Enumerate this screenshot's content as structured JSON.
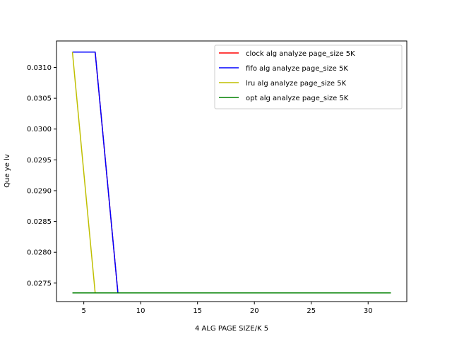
{
  "chart_data": {
    "type": "line",
    "title": "",
    "xlabel": "4 ALG PAGE SIZE/K 5",
    "ylabel": "Que ye lv",
    "xlim": [
      2.6,
      33.4
    ],
    "ylim": [
      0.0272,
      0.03143
    ],
    "xticks": [
      5,
      10,
      15,
      20,
      25,
      30
    ],
    "yticks": [
      0.0275,
      0.028,
      0.0285,
      0.029,
      0.0295,
      0.03,
      0.0305,
      0.031
    ],
    "ytick_labels": [
      "0.0275",
      "0.0280",
      "0.0285",
      "0.0290",
      "0.0295",
      "0.0300",
      "0.0305",
      "0.0310"
    ],
    "grid": false,
    "legend_position": "top-right",
    "series": [
      {
        "name": "clock alg analyze page_size 5K",
        "color": "#ff0000",
        "x": [
          4,
          6,
          8,
          10,
          12,
          14,
          16,
          18,
          20,
          22,
          24,
          26,
          28,
          30,
          32
        ],
        "y": [
          0.03125,
          0.03125,
          0.02734,
          0.02734,
          0.02734,
          0.02734,
          0.02734,
          0.02734,
          0.02734,
          0.02734,
          0.02734,
          0.02734,
          0.02734,
          0.02734,
          0.02734
        ]
      },
      {
        "name": "fifo alg analyze page_size 5K",
        "color": "#0000ff",
        "x": [
          4,
          6,
          8,
          10,
          12,
          14,
          16,
          18,
          20,
          22,
          24,
          26,
          28,
          30,
          32
        ],
        "y": [
          0.03125,
          0.03125,
          0.02734,
          0.02734,
          0.02734,
          0.02734,
          0.02734,
          0.02734,
          0.02734,
          0.02734,
          0.02734,
          0.02734,
          0.02734,
          0.02734,
          0.02734
        ]
      },
      {
        "name": "lru alg analyze page_size 5K",
        "color": "#bfbf00",
        "x": [
          4,
          6,
          8,
          10,
          12,
          14,
          16,
          18,
          20,
          22,
          24,
          26,
          28,
          30,
          32
        ],
        "y": [
          0.03125,
          0.02734,
          0.02734,
          0.02734,
          0.02734,
          0.02734,
          0.02734,
          0.02734,
          0.02734,
          0.02734,
          0.02734,
          0.02734,
          0.02734,
          0.02734,
          0.02734
        ]
      },
      {
        "name": "opt alg analyze page_size 5K",
        "color": "#008000",
        "x": [
          4,
          6,
          8,
          10,
          12,
          14,
          16,
          18,
          20,
          22,
          24,
          26,
          28,
          30,
          32
        ],
        "y": [
          0.02734,
          0.02734,
          0.02734,
          0.02734,
          0.02734,
          0.02734,
          0.02734,
          0.02734,
          0.02734,
          0.02734,
          0.02734,
          0.02734,
          0.02734,
          0.02734,
          0.02734
        ]
      }
    ]
  }
}
